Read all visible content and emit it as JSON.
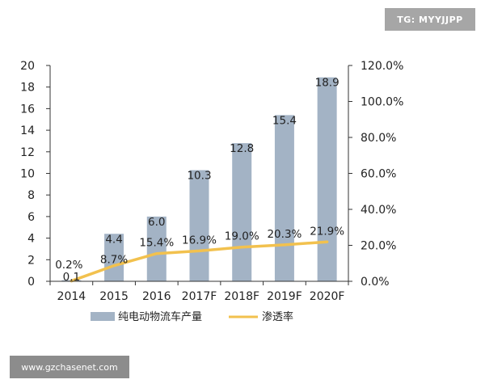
{
  "watermarks": {
    "top_right": "TG: MYYJJPP",
    "bottom_left": "www.gzchasenet.com"
  },
  "colors": {
    "bar": "#a3b3c5",
    "line": "#f2c14e",
    "axis": "#333333"
  },
  "chart_data": {
    "type": "bar",
    "categories": [
      "2014",
      "2015",
      "2016",
      "2017F",
      "2018F",
      "2019F",
      "2020F"
    ],
    "series": [
      {
        "name": "纯电动物流车产量",
        "type": "bar",
        "axis": "left",
        "values": [
          0.1,
          4.4,
          6.0,
          10.3,
          12.8,
          15.4,
          18.9
        ],
        "labels": [
          "0.1",
          "4.4",
          "6.0",
          "10.3",
          "12.8",
          "15.4",
          "18.9"
        ]
      },
      {
        "name": "渗透率",
        "type": "line",
        "axis": "right",
        "values": [
          0.2,
          8.7,
          15.4,
          16.9,
          19.0,
          20.3,
          21.9
        ],
        "labels": [
          "0.2%",
          "8.7%",
          "15.4%",
          "16.9%",
          "19.0%",
          "20.3%",
          "21.9%"
        ]
      }
    ],
    "left_axis": {
      "ylim": [
        0,
        20
      ],
      "ticks": [
        "0",
        "2",
        "4",
        "6",
        "8",
        "10",
        "12",
        "14",
        "16",
        "18",
        "20"
      ]
    },
    "right_axis": {
      "ylim": [
        0,
        120
      ],
      "ticks": [
        "0.0%",
        "20.0%",
        "40.0%",
        "60.0%",
        "80.0%",
        "100.0%",
        "120.0%"
      ]
    },
    "legend": [
      "纯电动物流车产量",
      "渗透率"
    ],
    "legend_position": "bottom",
    "grid": false
  }
}
